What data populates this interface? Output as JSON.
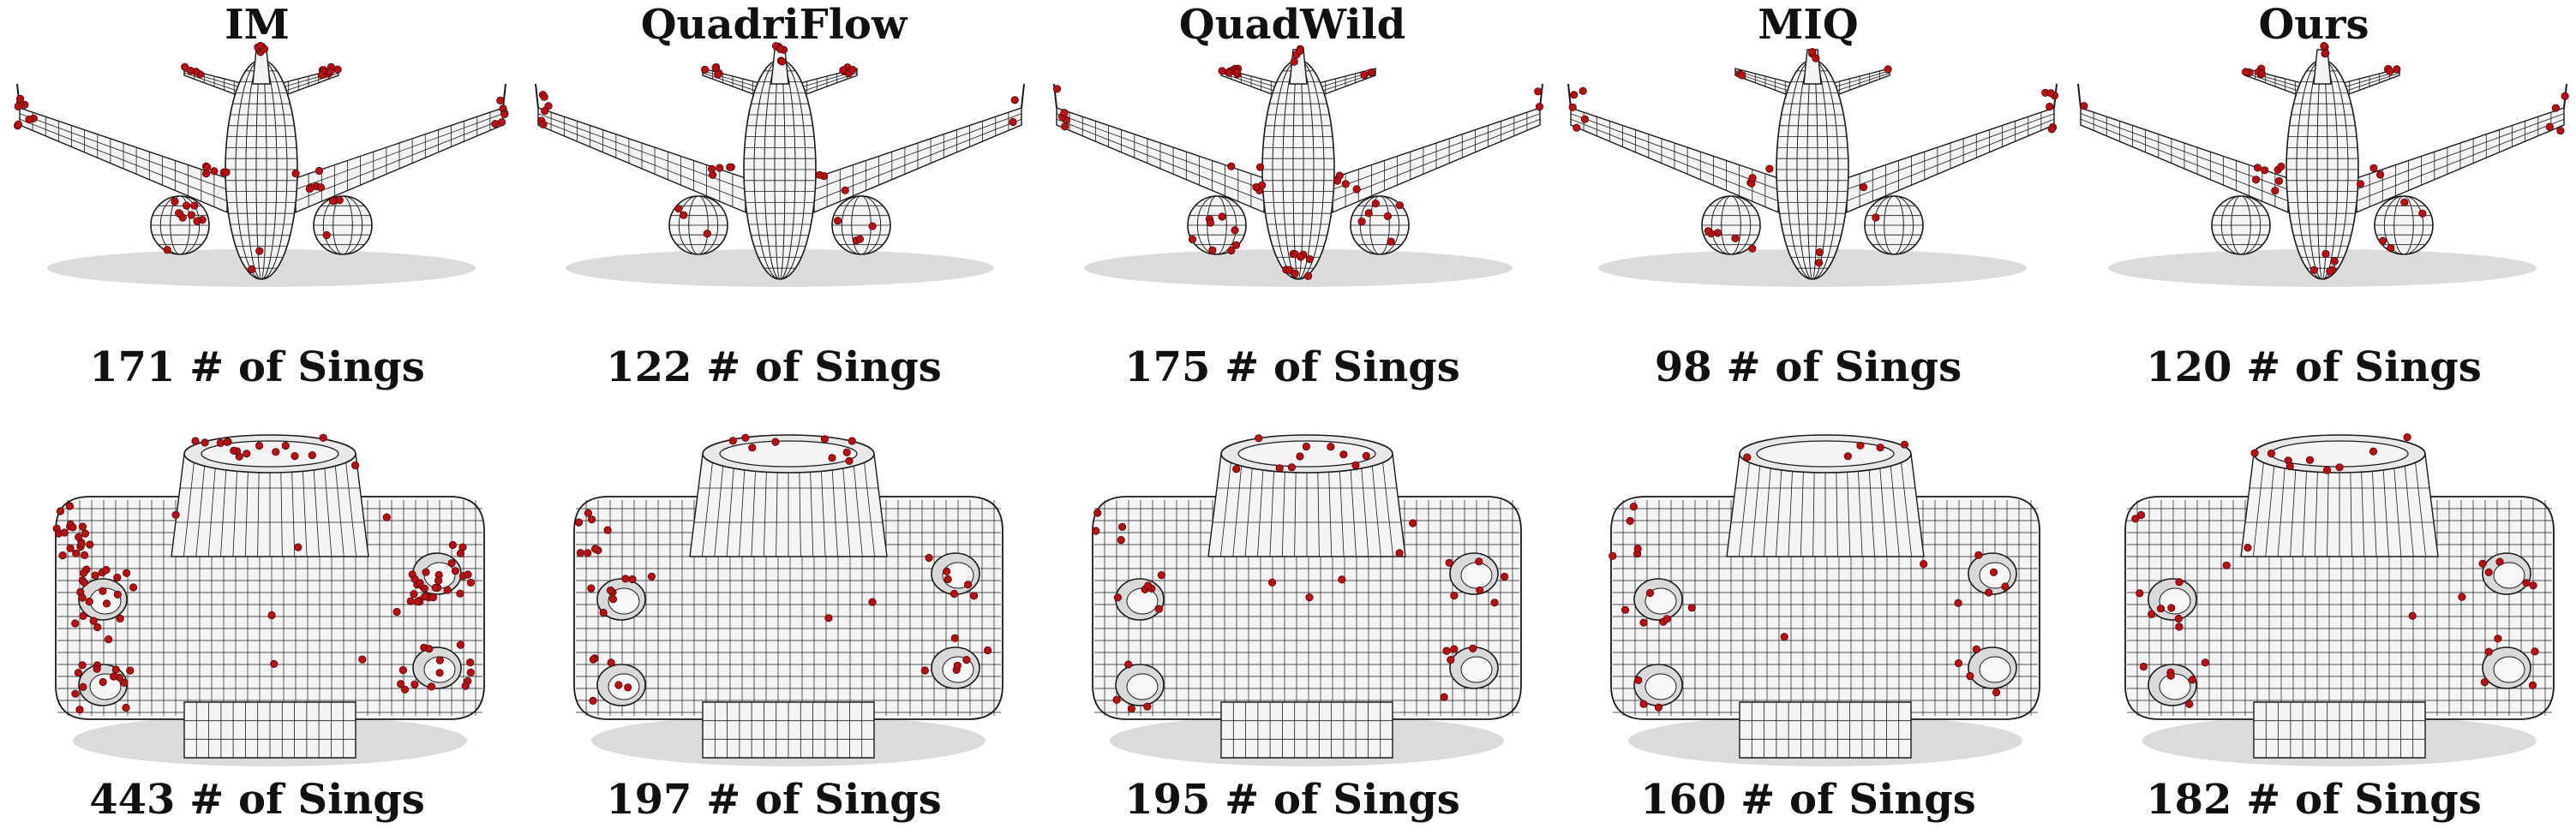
{
  "methods": [
    "IM",
    "QuadriFlow",
    "QuadWild",
    "MIQ",
    "Ours"
  ],
  "rows": [
    {
      "model": "airplane",
      "singularity_counts": [
        "171 # of Sings",
        "122 # of Sings",
        "175 # of Sings",
        "98 # of Sings",
        "120 # of Sings"
      ]
    },
    {
      "model": "mechanical-part",
      "singularity_counts": [
        "443 # of Sings",
        "197 # of Sings",
        "195 # of Sings",
        "160 # of Sings",
        "182 # of Sings"
      ]
    }
  ],
  "colors": {
    "mesh_line": "#1a1a1a",
    "surface": "#f4f4f4",
    "singularity": "#b31217",
    "shadow": "#bdbdbd"
  }
}
